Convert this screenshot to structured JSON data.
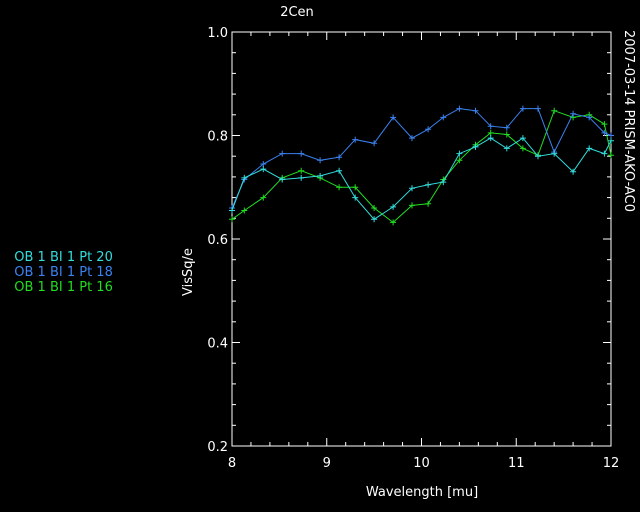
{
  "chart_data": {
    "type": "line",
    "title": "2Cen",
    "side_label": "2007-03-14 PRISM-AKO-AC0",
    "xlabel": "Wavelength [mu]",
    "ylabel": "VisSq/e",
    "xlim": [
      8,
      12
    ],
    "ylim": [
      0.2,
      1.0
    ],
    "x_ticks": [
      "8",
      "9",
      "10",
      "11",
      "12"
    ],
    "y_ticks": [
      "0.2",
      "0.4",
      "0.6",
      "0.8",
      "1.0"
    ],
    "grid": false,
    "legend_placement": "left",
    "series": [
      {
        "name": "OB 1 BI 1 Pt 20",
        "color": "#33dddd",
        "x": [
          8.0,
          8.13,
          8.33,
          8.53,
          8.73,
          8.93,
          9.13,
          9.3,
          9.5,
          9.7,
          9.9,
          10.07,
          10.23,
          10.4,
          10.57,
          10.73,
          10.9,
          11.07,
          11.23,
          11.4,
          11.6,
          11.77,
          11.93,
          12.0
        ],
        "y": [
          0.655,
          0.718,
          0.735,
          0.715,
          0.718,
          0.722,
          0.732,
          0.68,
          0.638,
          0.662,
          0.698,
          0.705,
          0.71,
          0.765,
          0.778,
          0.795,
          0.775,
          0.795,
          0.76,
          0.765,
          0.73,
          0.775,
          0.765,
          0.79
        ]
      },
      {
        "name": "OB 1 BI 1 Pt 18",
        "color": "#3b82f0",
        "x": [
          8.0,
          8.13,
          8.33,
          8.53,
          8.73,
          8.93,
          9.13,
          9.3,
          9.5,
          9.7,
          9.9,
          10.07,
          10.23,
          10.4,
          10.57,
          10.73,
          10.9,
          11.07,
          11.23,
          11.4,
          11.6,
          11.77,
          11.93,
          12.0
        ],
        "y": [
          0.66,
          0.715,
          0.745,
          0.765,
          0.765,
          0.752,
          0.758,
          0.792,
          0.785,
          0.835,
          0.795,
          0.812,
          0.835,
          0.852,
          0.848,
          0.818,
          0.815,
          0.852,
          0.852,
          0.768,
          0.842,
          0.835,
          0.805,
          0.8
        ]
      },
      {
        "name": "OB 1 BI 1 Pt 16",
        "color": "#22dd22",
        "x": [
          8.0,
          8.13,
          8.33,
          8.53,
          8.73,
          8.93,
          9.13,
          9.3,
          9.5,
          9.7,
          9.9,
          10.07,
          10.23,
          10.4,
          10.57,
          10.73,
          10.9,
          11.07,
          11.23,
          11.4,
          11.6,
          11.77,
          11.93,
          12.0
        ],
        "y": [
          0.638,
          0.655,
          0.68,
          0.718,
          0.732,
          0.718,
          0.7,
          0.7,
          0.66,
          0.632,
          0.665,
          0.668,
          0.715,
          0.752,
          0.782,
          0.805,
          0.802,
          0.775,
          0.762,
          0.848,
          0.835,
          0.84,
          0.822,
          0.762
        ]
      }
    ]
  }
}
